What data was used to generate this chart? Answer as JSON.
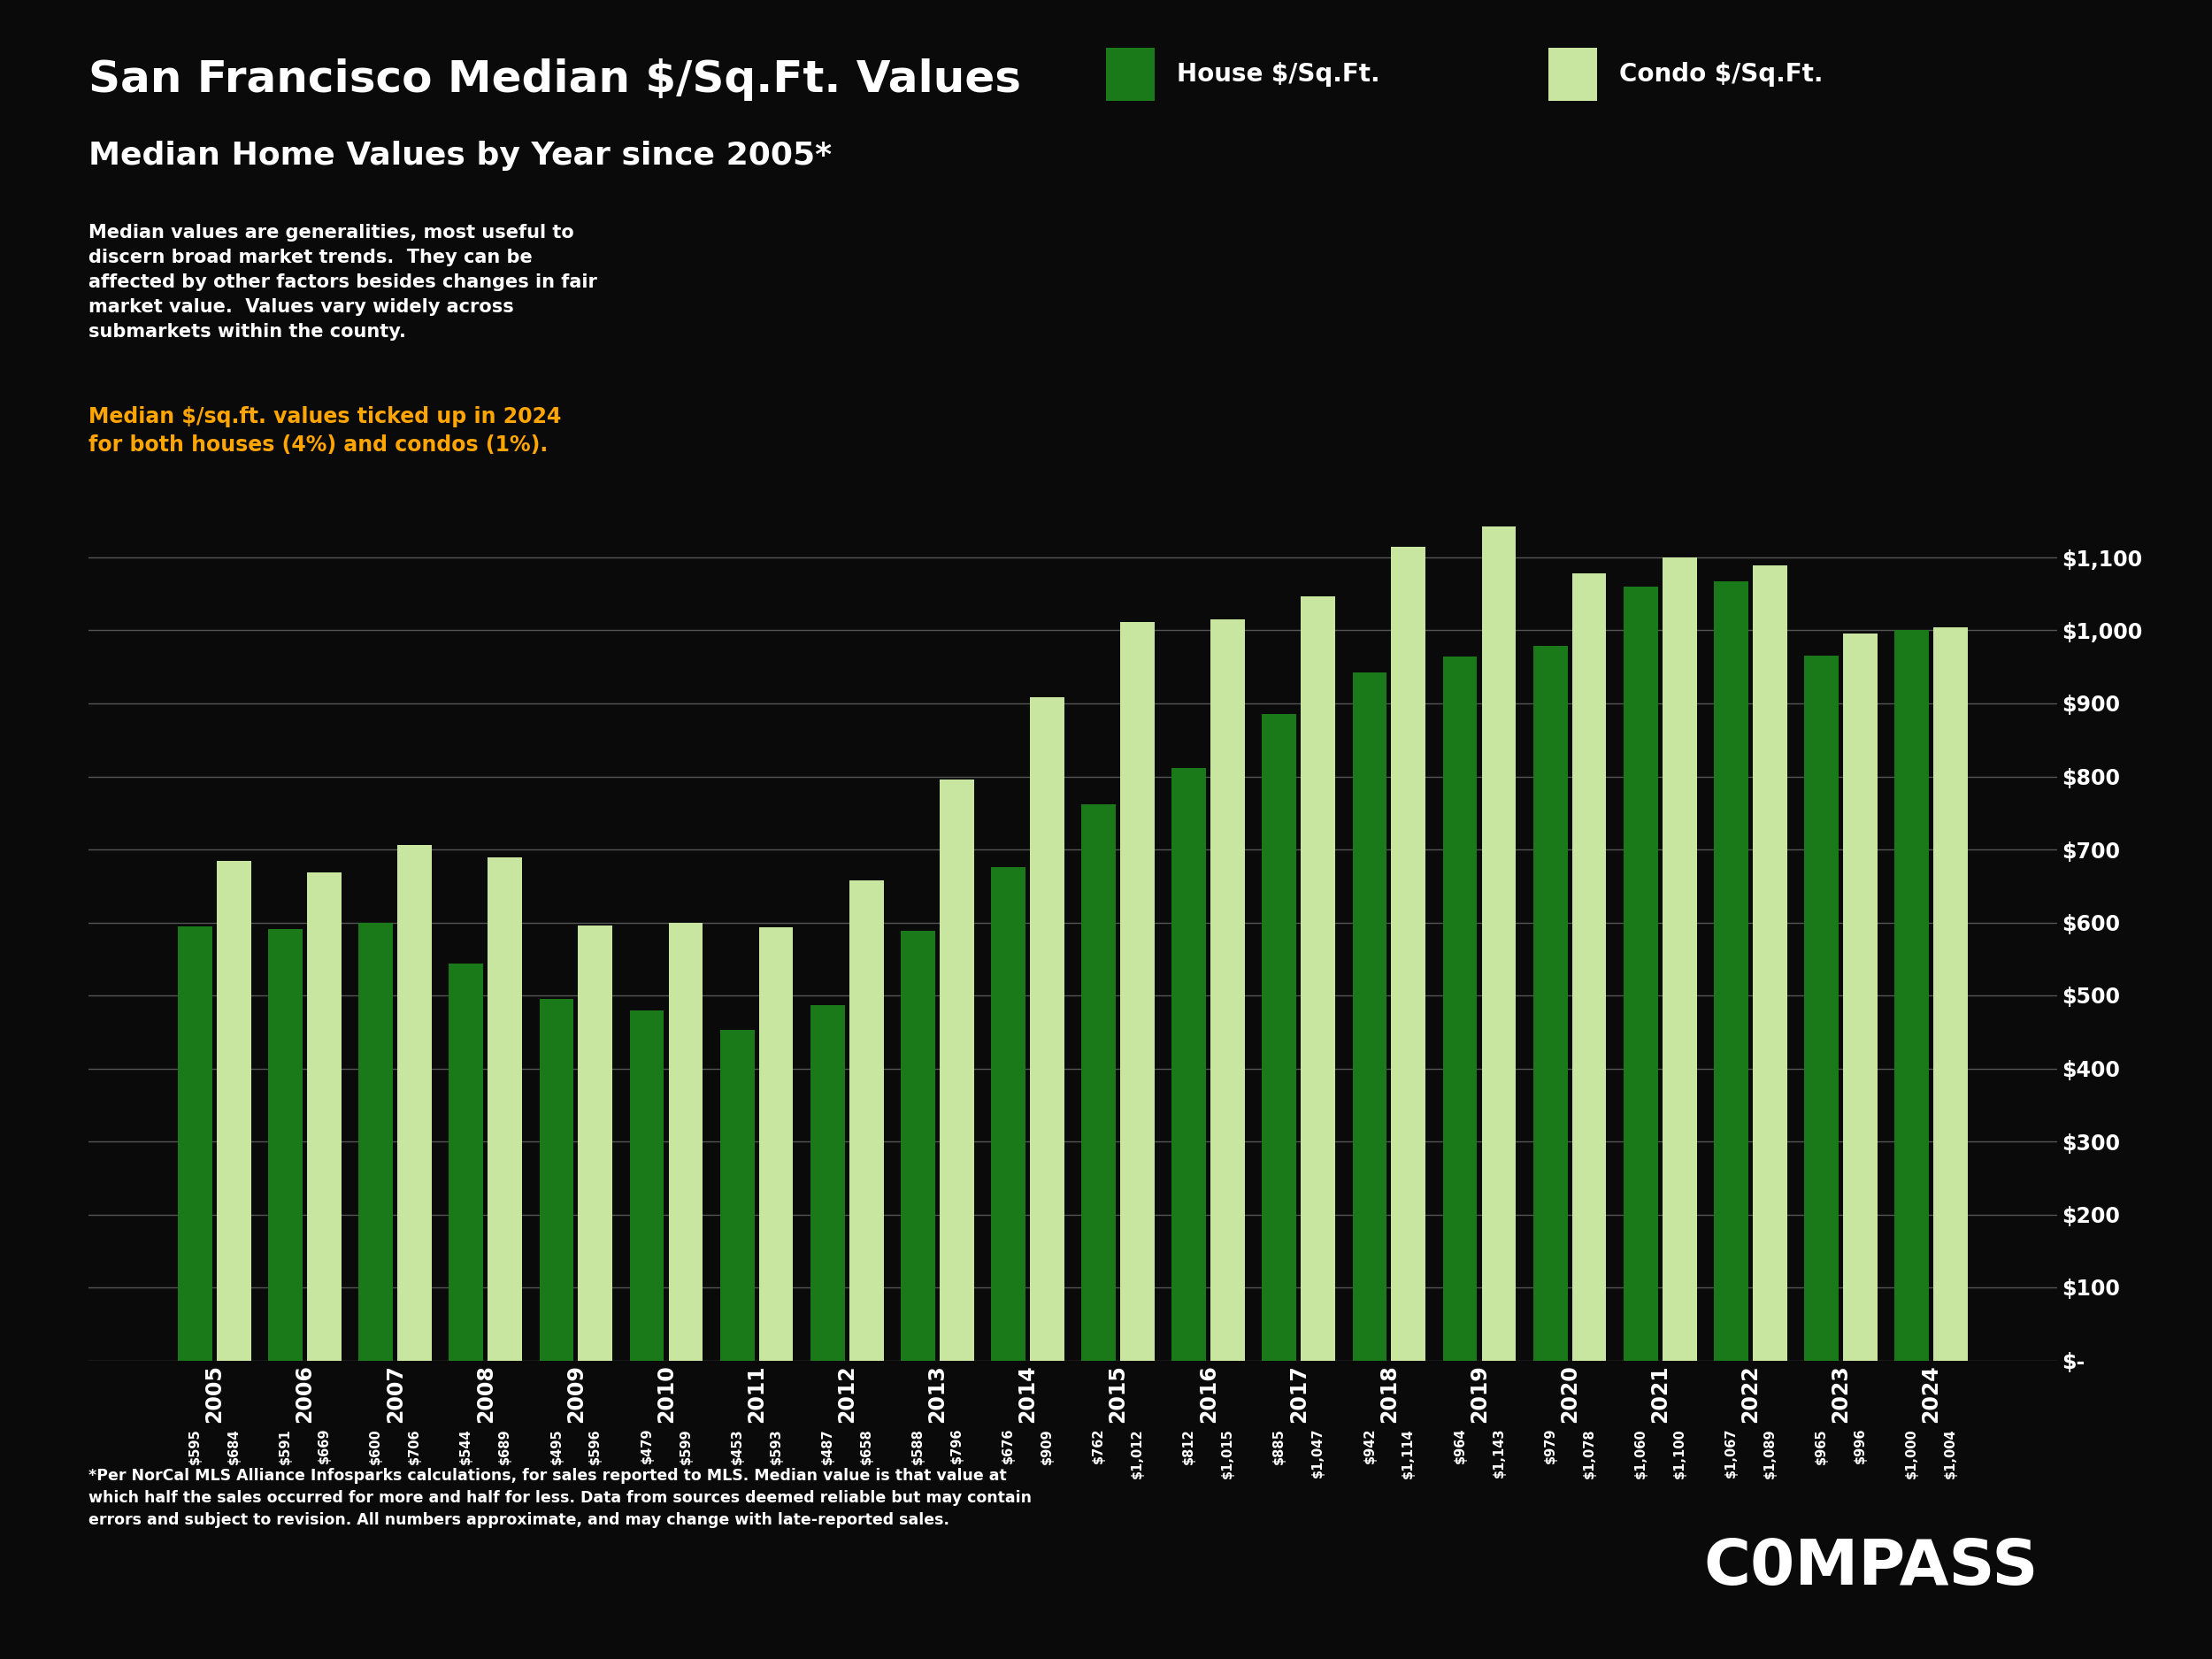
{
  "title": "San Francisco Median $/Sq.Ft. Values",
  "subtitle": "Median Home Values by Year since 2005*",
  "years": [
    2005,
    2006,
    2007,
    2008,
    2009,
    2010,
    2011,
    2012,
    2013,
    2014,
    2015,
    2016,
    2017,
    2018,
    2019,
    2020,
    2021,
    2022,
    2023,
    2024
  ],
  "house_values": [
    595,
    591,
    600,
    544,
    495,
    479,
    453,
    487,
    588,
    676,
    762,
    812,
    885,
    942,
    964,
    979,
    1060,
    1067,
    965,
    1000
  ],
  "condo_values": [
    684,
    669,
    706,
    689,
    596,
    599,
    593,
    658,
    796,
    909,
    1012,
    1015,
    1047,
    1114,
    1143,
    1078,
    1100,
    1089,
    996,
    1004
  ],
  "house_color": "#1a7a1a",
  "condo_color": "#c8e6a0",
  "background_color": "#0a0a0a",
  "text_color": "#ffffff",
  "annotation_line1": "Median $/sq.ft. values ticked up in 2024",
  "annotation_line2": "for both houses (4%) and condos (1%).",
  "annotation_color": "#ffa500",
  "description_text": "Median values are generalities, most useful to discern broad market trends. They can be affected by other factors besides changes in fair market value. Values vary widely across submarkets within the county.",
  "footnote_text": "*Per NorCal MLS Alliance Infosparks calculations, for sales reported to MLS. Median value is that value at\nwhich half the sales occurred for more and half for less. Data from sources deemed reliable but may contain\nerrors and subject to revision. All numbers approximate, and may change with late-reported sales.",
  "legend_house_label": "House $/Sq.Ft.",
  "legend_condo_label": "Condo $/Sq.Ft.",
  "ylim_max": 1250,
  "yticks": [
    0,
    100,
    200,
    300,
    400,
    500,
    600,
    700,
    800,
    900,
    1000,
    1100
  ],
  "grid_color": "#555555",
  "compass_text": "C0MPASS"
}
